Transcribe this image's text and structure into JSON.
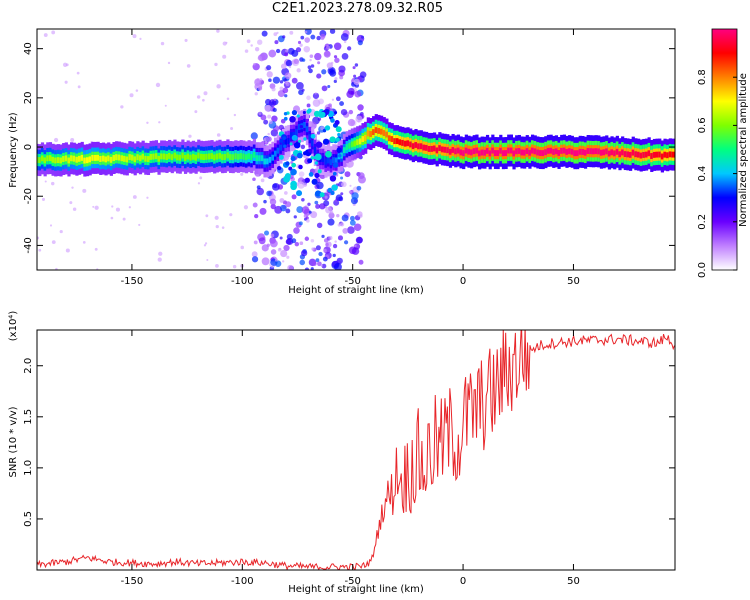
{
  "title": "C2E1.2023.278.09.32.R05",
  "colors": {
    "snr_line": "#e8262a",
    "frame": "#000000"
  },
  "chart_data": [
    {
      "type": "heatmap",
      "xlabel": "Height of straight line (km)",
      "ylabel": "Frequency (Hz)",
      "xlim": [
        -193,
        96
      ],
      "ylim": [
        -50,
        48
      ],
      "xticks": [
        -150,
        -100,
        -50,
        0,
        50
      ],
      "yticks": [
        -40,
        -20,
        0,
        20,
        40
      ],
      "tick_labels_x": [
        "-150",
        "-100",
        "-50",
        "0",
        "50"
      ],
      "tick_labels_y": [
        "-40",
        "-20",
        "0",
        "20",
        "40"
      ],
      "colorbar": {
        "label": "Normalized spectral amplitude",
        "range": [
          0,
          1
        ],
        "ticks": [
          0.0,
          0.2,
          0.4,
          0.6,
          0.8
        ],
        "tick_labels": [
          "0.0",
          "0.2",
          "0.4",
          "0.6",
          "0.8"
        ],
        "colors": [
          "#ffffff",
          "#c080ff",
          "#6a00ff",
          "#0000ff",
          "#00c8ff",
          "#00ff80",
          "#7fff00",
          "#ffff00",
          "#ff8000",
          "#ff0000",
          "#ff0080"
        ]
      },
      "ridge": {
        "x": [
          -193,
          -170,
          -150,
          -130,
          -110,
          -95,
          -88,
          -80,
          -72,
          -65,
          -58,
          -52,
          -46,
          -40,
          -35,
          -30,
          -20,
          -10,
          0,
          20,
          40,
          60,
          80,
          96
        ],
        "frequency": [
          -5,
          -5,
          -4.5,
          -4,
          -4,
          -3.5,
          -6,
          2,
          10,
          -5,
          -6,
          0,
          3,
          7,
          5,
          2,
          0,
          -1,
          -2,
          -2,
          -2,
          -2,
          -3,
          -3.5
        ],
        "amplitude": [
          0.6,
          0.7,
          0.65,
          0.6,
          0.6,
          0.5,
          0.4,
          0.3,
          0.35,
          0.3,
          0.35,
          0.5,
          0.7,
          0.85,
          0.8,
          0.9,
          0.95,
          0.95,
          1.0,
          1.0,
          1.0,
          1.0,
          0.95,
          0.9
        ]
      }
    },
    {
      "type": "line",
      "xlabel": "Height of straight line (km)",
      "ylabel": "SNR (10 * v/v)",
      "scale_label": "(x10⁴)",
      "xlim": [
        -193,
        96
      ],
      "ylim": [
        0,
        2.35
      ],
      "xticks": [
        -150,
        -100,
        -50,
        0,
        50
      ],
      "yticks": [
        0.5,
        1.0,
        1.5,
        2.0
      ],
      "tick_labels_x": [
        "-150",
        "-100",
        "-50",
        "0",
        "50"
      ],
      "tick_labels_y": [
        "0.5",
        "1.0",
        "1.5",
        "2.0"
      ],
      "series": [
        {
          "x": [
            -193,
            -180,
            -170,
            -160,
            -150,
            -140,
            -130,
            -120,
            -110,
            -100,
            -90,
            -80,
            -70,
            -60,
            -50,
            -45,
            -42,
            -40,
            -38,
            -35,
            -32,
            -30,
            -28,
            -25,
            -22,
            -20,
            -18,
            -15,
            -12,
            -10,
            -8,
            -5,
            -2,
            0,
            2,
            5,
            8,
            10,
            12,
            15,
            18,
            20,
            25,
            30,
            35,
            40,
            50,
            60,
            70,
            80,
            88,
            92,
            96
          ],
          "y": [
            0.05,
            0.08,
            0.12,
            0.08,
            0.07,
            0.06,
            0.08,
            0.06,
            0.07,
            0.08,
            0.07,
            0.04,
            0.03,
            0.03,
            0.03,
            0.04,
            0.08,
            0.2,
            0.45,
            0.7,
            0.75,
            1.0,
            0.85,
            0.95,
            1.05,
            1.1,
            1.0,
            1.15,
            1.25,
            1.2,
            1.3,
            1.35,
            1.25,
            1.45,
            1.5,
            1.55,
            1.6,
            1.65,
            1.7,
            1.75,
            1.9,
            1.95,
            2.05,
            2.15,
            2.2,
            2.22,
            2.24,
            2.25,
            2.26,
            2.24,
            2.22,
            2.28,
            2.2
          ]
        }
      ]
    }
  ]
}
